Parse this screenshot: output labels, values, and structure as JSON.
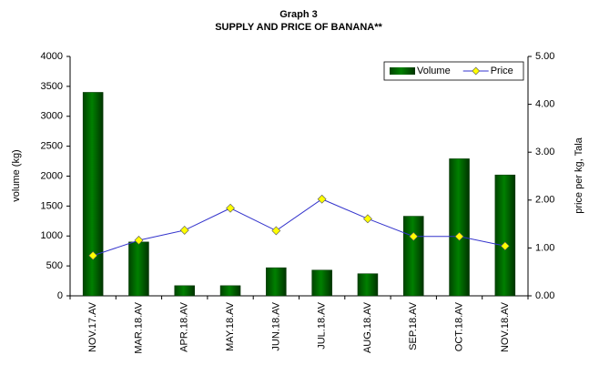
{
  "chart_data": {
    "type": "bar-line",
    "title": "Graph 3",
    "subtitle": "SUPPLY AND PRICE OF BANANA**",
    "y_label": "volume (kg)",
    "y2_label": "price per kg, Tala",
    "categories": [
      "NOV.17.AV",
      "MAR.18.AV",
      "APR.18.AV",
      "MAY.18.AV",
      "JUN.18.AV",
      "JUL.18.AV",
      "AUG.18.AV",
      "SEP.18.AV",
      "OCT.18.AV",
      "NOV.18.AV"
    ],
    "series": [
      {
        "name": "Volume",
        "type": "bar",
        "color": "#006600",
        "values": [
          3400,
          900,
          170,
          170,
          470,
          430,
          370,
          1330,
          2290,
          2020
        ]
      },
      {
        "name": "Price",
        "type": "line",
        "axis": "y2",
        "color": "#3333cc",
        "marker_color": "#ffff00",
        "values": [
          0.84,
          1.16,
          1.37,
          1.83,
          1.36,
          2.02,
          1.61,
          1.24,
          1.24,
          1.04
        ]
      }
    ],
    "ylim": [
      0,
      4000
    ],
    "yticks": [
      0,
      500,
      1000,
      1500,
      2000,
      2500,
      3000,
      3500,
      4000
    ],
    "y2lim": [
      0,
      5
    ],
    "y2ticks": [
      {
        "value": 0,
        "label": "0.00"
      },
      {
        "value": 1,
        "label": "1.00"
      },
      {
        "value": 2,
        "label": "2.00"
      },
      {
        "value": 3,
        "label": "3.00"
      },
      {
        "value": 4,
        "label": "4.00"
      },
      {
        "value": 5,
        "label": "5.00"
      }
    ],
    "grid": false,
    "legend": "top-right"
  }
}
